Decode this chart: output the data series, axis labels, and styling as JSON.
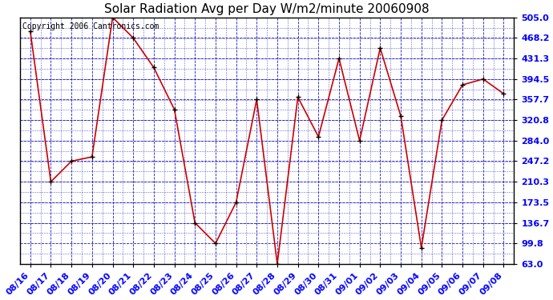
{
  "title": "Solar Radiation Avg per Day W/m2/minute 20060908",
  "copyright": "Copyright 2006 Cantronics.com",
  "dates": [
    "08/16",
    "08/17",
    "08/18",
    "08/19",
    "08/20",
    "08/21",
    "08/22",
    "08/23",
    "08/24",
    "08/25",
    "08/26",
    "08/27",
    "08/28",
    "08/29",
    "08/30",
    "08/31",
    "09/01",
    "09/02",
    "09/03",
    "09/04",
    "09/05",
    "09/06",
    "09/07",
    "09/08"
  ],
  "values": [
    480.0,
    210.3,
    247.2,
    255.0,
    505.0,
    468.2,
    415.0,
    340.0,
    136.7,
    99.8,
    173.5,
    357.7,
    63.0,
    362.0,
    291.0,
    431.3,
    284.0,
    450.0,
    328.0,
    92.0,
    320.8,
    384.0,
    394.5,
    368.0
  ],
  "ylim": [
    63.0,
    505.0
  ],
  "yticks": [
    63.0,
    99.8,
    136.7,
    173.5,
    210.3,
    247.2,
    284.0,
    320.8,
    357.7,
    394.5,
    431.3,
    468.2,
    505.0
  ],
  "ytick_labels": [
    "63.0",
    "99.8",
    "136.7",
    "173.5",
    "210.3",
    "247.2",
    "284.0",
    "320.8",
    "357.7",
    "394.5",
    "431.3",
    "468.2",
    "505.0"
  ],
  "bg_color": "#ffffff",
  "line_color": "#cc0000",
  "marker_color": "#000000",
  "grid_color_h": "#0000bb",
  "grid_color_v": "#0000bb",
  "plot_bg_color": "#ffffff",
  "title_fontsize": 11,
  "tick_fontsize": 8,
  "copyright_fontsize": 7
}
